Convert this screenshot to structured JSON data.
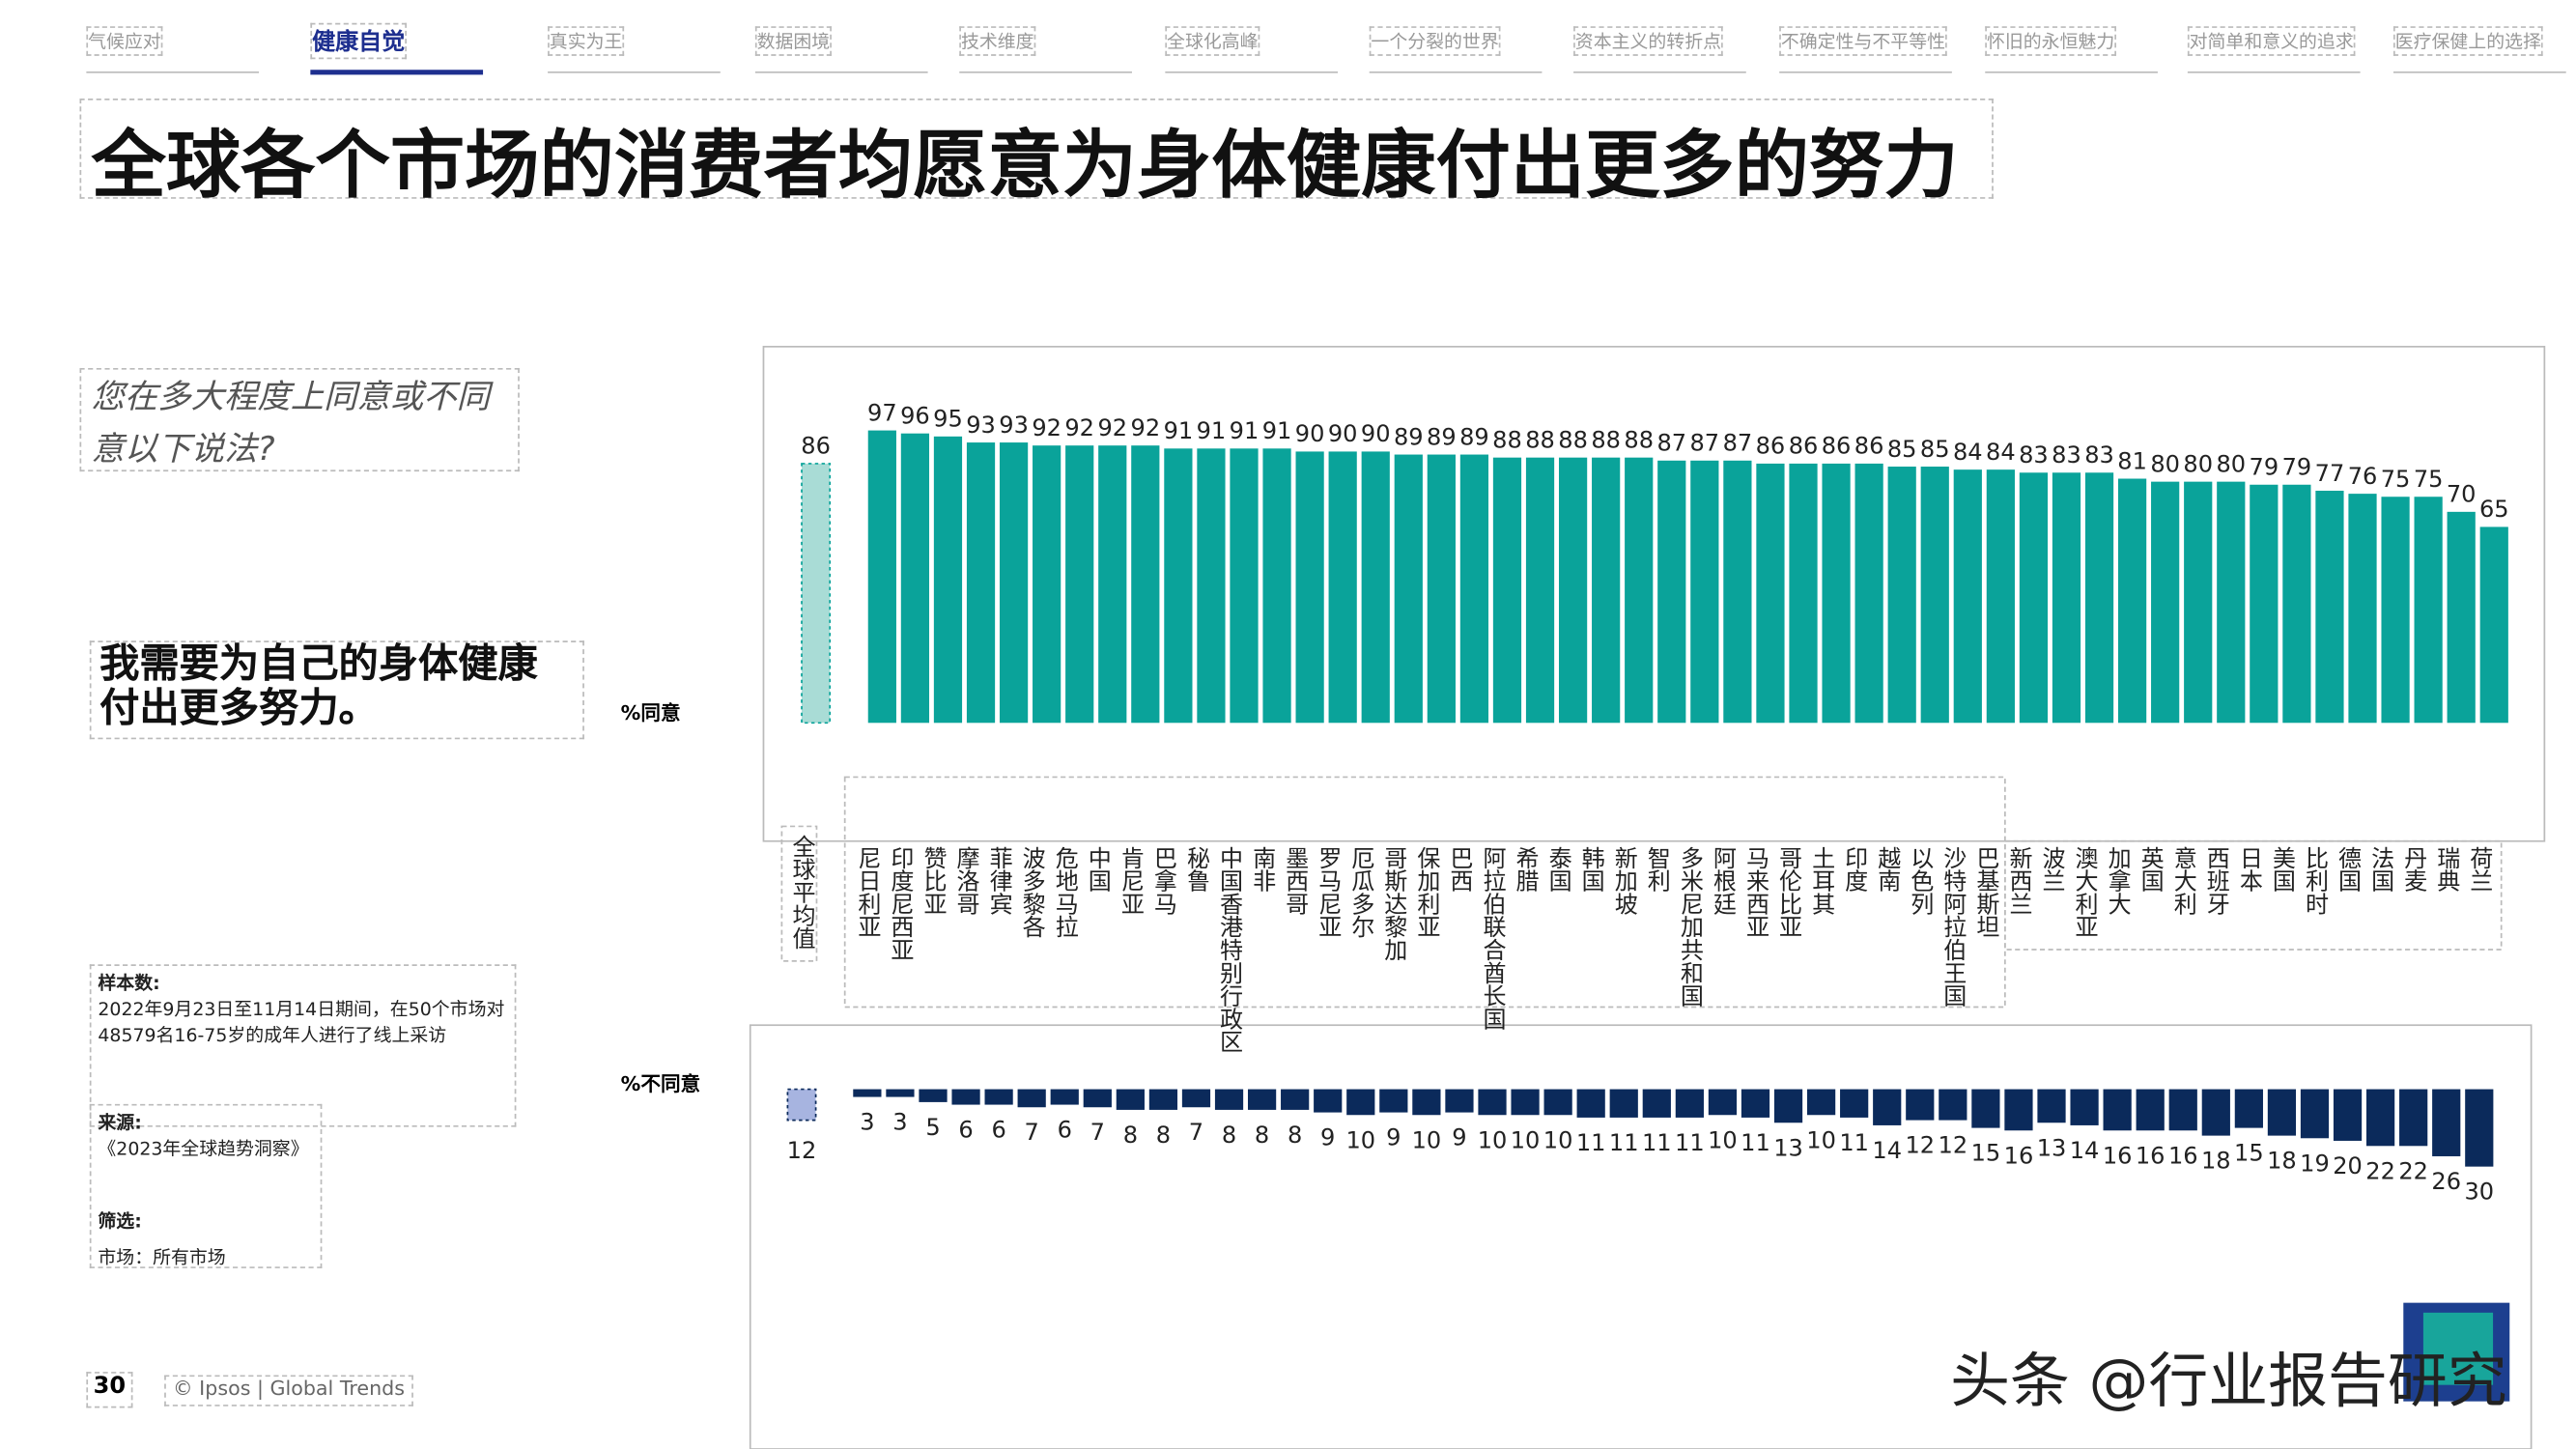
{
  "nav": [
    "气候应对",
    "健康自觉",
    "真实为王",
    "数据困境",
    "技术维度",
    "全球化高峰",
    "一个分裂的世界",
    "资本主义的转折点",
    "不确定性与不平等性",
    "怀旧的永恒魅力",
    "对简单和意义的追求",
    "医疗保健上的选择"
  ],
  "active_tab": 1,
  "title": "全球各个市场的消费者均愿意为身体健康付出更多的努力",
  "question": "您在多大程度上同意或不同意以下说法?",
  "statement": "我需要为自己的身体健康付出更多努力。",
  "sample_label": "样本数:",
  "sample_text": "2022年9月23日至11月14日期间，在50个市场对48579名16-75岁的成年人进行了线上采访",
  "source_label": "来源:",
  "source_text": "《2023年全球趋势洞察》",
  "filter_label": "筛选:",
  "filter_text": "市场：所有市场",
  "page_number": "30",
  "copyright": "© Ipsos | Global Trends",
  "watermark": "头条 @行业报告研究",
  "chart_data": [
    {
      "type": "bar",
      "series_label": "%同意",
      "color": "#0aa39a",
      "highlight_color": "#a9dcd6",
      "ylim": [
        0,
        100
      ],
      "categories": [
        "全球平均值",
        "尼日利亚",
        "印度尼西亚",
        "赞比亚",
        "摩洛哥",
        "菲律宾",
        "波多黎各",
        "危地马拉",
        "中国",
        "肯尼亚",
        "巴拿马",
        "秘鲁",
        "中国香港特别行政区",
        "南非",
        "墨西哥",
        "罗马尼亚",
        "厄瓜多尔",
        "哥斯达黎加",
        "保加利亚",
        "巴西",
        "阿拉伯联合酋长国",
        "希腊",
        "泰国",
        "韩国",
        "新加坡",
        "智利",
        "多米尼加共和国",
        "阿根廷",
        "马来西亚",
        "哥伦比亚",
        "土耳其",
        "印度",
        "越南",
        "以色列",
        "沙特阿拉伯王国",
        "巴基斯坦",
        "新西兰",
        "波兰",
        "澳大利亚",
        "加拿大",
        "英国",
        "意大利",
        "西班牙",
        "日本",
        "美国",
        "比利时",
        "德国",
        "法国",
        "丹麦",
        "瑞典",
        "荷兰"
      ],
      "values": [
        86,
        97,
        96,
        95,
        93,
        93,
        92,
        92,
        92,
        92,
        91,
        91,
        91,
        91,
        90,
        90,
        90,
        89,
        89,
        89,
        88,
        88,
        88,
        88,
        88,
        87,
        87,
        87,
        86,
        86,
        86,
        86,
        85,
        85,
        84,
        84,
        83,
        83,
        83,
        81,
        80,
        80,
        80,
        79,
        79,
        77,
        76,
        75,
        75,
        70,
        65
      ]
    },
    {
      "type": "bar",
      "direction": "down",
      "series_label": "%不同意",
      "color": "#0b2a5b",
      "highlight_color": "#a7b4e0",
      "ylim": [
        0,
        100
      ],
      "values": [
        12,
        3,
        3,
        5,
        6,
        6,
        7,
        6,
        7,
        8,
        8,
        7,
        8,
        8,
        8,
        9,
        10,
        9,
        10,
        9,
        10,
        10,
        10,
        11,
        11,
        11,
        11,
        10,
        11,
        13,
        10,
        11,
        14,
        12,
        12,
        15,
        16,
        13,
        14,
        16,
        16,
        16,
        18,
        15,
        18,
        19,
        20,
        22,
        22,
        26,
        30
      ]
    }
  ]
}
